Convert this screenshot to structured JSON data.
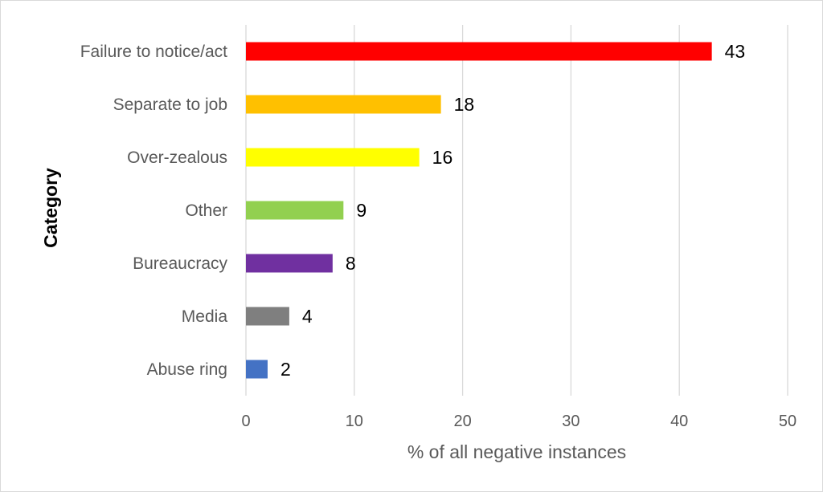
{
  "chart_data": {
    "type": "bar",
    "orientation": "horizontal",
    "categories": [
      "Failure to notice/act",
      "Separate to job",
      "Over-zealous",
      "Other",
      "Bureaucracy",
      "Media",
      "Abuse ring"
    ],
    "values": [
      43,
      18,
      16,
      9,
      8,
      4,
      2
    ],
    "colors": [
      "#ff0000",
      "#ffc000",
      "#ffff00",
      "#92d050",
      "#7030a0",
      "#7f7f7f",
      "#4472c4"
    ],
    "xlabel": "% of all negative instances",
    "ylabel": "Category",
    "xlim": [
      0,
      50
    ],
    "xticks": [
      0,
      10,
      20,
      30,
      40,
      50
    ],
    "grid": "vertical",
    "data_labels": true
  }
}
